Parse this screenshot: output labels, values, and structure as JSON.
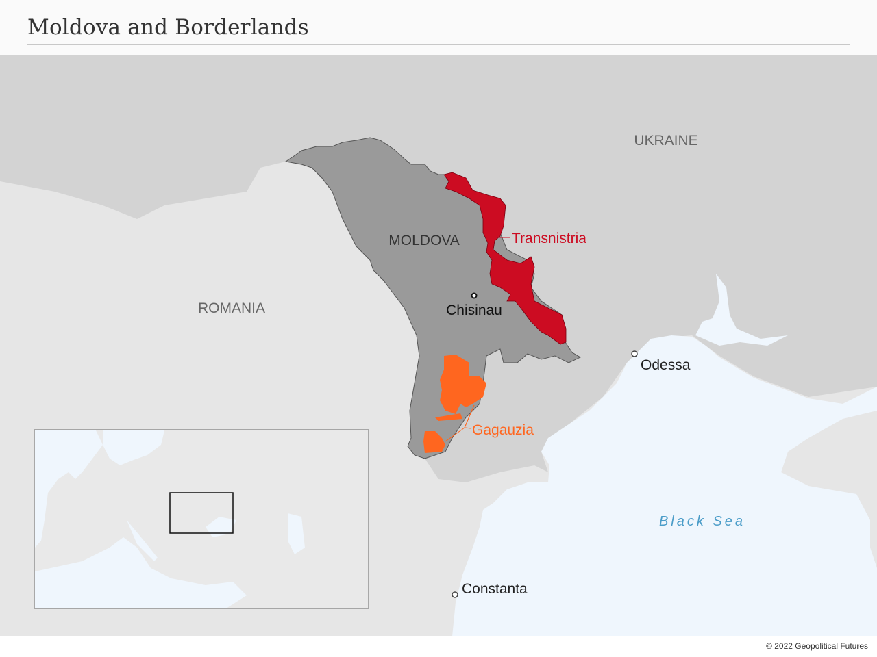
{
  "title": "Moldova and Borderlands",
  "footer": {
    "copyright": "© 2022 Geopolitical Futures"
  },
  "labels": {
    "ukraine": "UKRAINE",
    "romania": "ROMANIA",
    "moldova": "MOLDOVA",
    "transnistria": "Transnistria",
    "gagauzia": "Gagauzia",
    "chisinau": "Chisinau",
    "odessa": "Odessa",
    "constanta": "Constanta",
    "black_sea": "Black Sea"
  },
  "colors": {
    "moldova": "#9a9a9a",
    "transnistria": "#cc0c22",
    "gagauzia": "#ff661f",
    "ukraine": "#d3d3d3",
    "romania": "#e6e6e6",
    "sea": "#eff6fd",
    "sea_label": "#4a9cc8"
  },
  "inset": {
    "type": "locator-map",
    "region": "Europe",
    "highlight": "Moldova area"
  }
}
